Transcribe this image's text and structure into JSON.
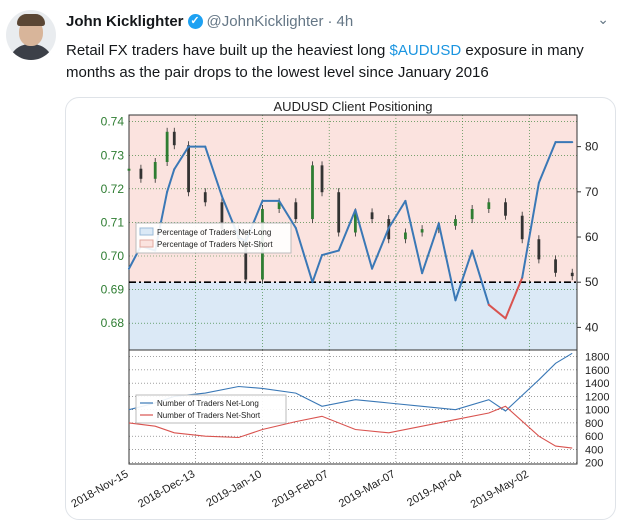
{
  "tweet": {
    "author_name": "John Kicklighter",
    "handle": "@JohnKicklighter",
    "separator": "·",
    "time": "4h",
    "verified_glyph": "✓",
    "menu_glyph": "⌄",
    "text_line1_pre": "Retail FX traders have built up the heaviest long ",
    "cashtag": "$AUDUSD",
    "text_line1_post": " exposure in many",
    "text_line2": "months as the pair drops to the lowest level since January 2016"
  },
  "colors": {
    "price_green": "#2e7d32",
    "long_blue": "#3a78b6",
    "short_red": "#d9534f",
    "long_fill": "#dbe9f6",
    "short_fill": "#fbe3df",
    "link": "#1b95e0"
  },
  "chart_data": {
    "type": "line",
    "title": "AUDUSD Client Positioning",
    "price_axis": {
      "ticks": [
        "0.74",
        "0.73",
        "0.72",
        "0.71",
        "0.70",
        "0.69",
        "0.68"
      ],
      "ylim": [
        0.672,
        0.742
      ]
    },
    "percent_axis": {
      "ticks": [
        "80",
        "70",
        "60",
        "50",
        "40"
      ],
      "ylim": [
        35,
        87
      ]
    },
    "count_axis": {
      "ticks": [
        "1800",
        "1600",
        "1400",
        "1200",
        "1000",
        "800",
        "600",
        "400",
        "200"
      ],
      "ylim": [
        180,
        1900
      ]
    },
    "x_ticks": [
      "2018-Nov-15",
      "2018-Dec-13",
      "2019-Jan-10",
      "2019-Feb-07",
      "2019-Mar-07",
      "2019-Apr-04",
      "2019-May-02"
    ],
    "top_legend": [
      "Percentage of Traders Net-Long",
      "Percentage of Traders Net-Short"
    ],
    "bottom_legend": [
      "Number of Traders Net-Long",
      "Number of Traders Net-Short"
    ],
    "series": [
      {
        "name": "AUDUSD",
        "x_dates": [
          "2018-11-15",
          "2018-11-20",
          "2018-11-26",
          "2018-12-01",
          "2018-12-04",
          "2018-12-10",
          "2018-12-17",
          "2018-12-24",
          "2018-12-31",
          "2019-01-03",
          "2019-01-10",
          "2019-01-17",
          "2019-01-24",
          "2019-01-31",
          "2019-02-04",
          "2019-02-11",
          "2019-02-18",
          "2019-02-25",
          "2019-03-04",
          "2019-03-11",
          "2019-03-18",
          "2019-03-25",
          "2019-04-01",
          "2019-04-08",
          "2019-04-15",
          "2019-04-22",
          "2019-04-29",
          "2019-05-06",
          "2019-05-13",
          "2019-05-20"
        ],
        "values": [
          0.726,
          0.723,
          0.728,
          0.737,
          0.733,
          0.719,
          0.716,
          0.708,
          0.705,
          0.693,
          0.714,
          0.716,
          0.711,
          0.727,
          0.719,
          0.707,
          0.713,
          0.711,
          0.705,
          0.707,
          0.708,
          0.709,
          0.711,
          0.714,
          0.716,
          0.712,
          0.705,
          0.699,
          0.695,
          0.694
        ]
      },
      {
        "name": "Percentage of Traders Net-Long",
        "x_dates": [
          "2018-11-15",
          "2018-11-20",
          "2018-11-26",
          "2018-12-01",
          "2018-12-04",
          "2018-12-10",
          "2018-12-17",
          "2018-12-24",
          "2018-12-31",
          "2019-01-03",
          "2019-01-10",
          "2019-01-17",
          "2019-01-24",
          "2019-01-31",
          "2019-02-04",
          "2019-02-11",
          "2019-02-18",
          "2019-02-25",
          "2019-03-04",
          "2019-03-11",
          "2019-03-18",
          "2019-03-25",
          "2019-04-01",
          "2019-04-08",
          "2019-04-15",
          "2019-04-22",
          "2019-04-29",
          "2019-05-06",
          "2019-05-13",
          "2019-05-20"
        ],
        "values": [
          53,
          58,
          57,
          70,
          75,
          80,
          80,
          69,
          60,
          59,
          68,
          68,
          62,
          50,
          56,
          57,
          66,
          53,
          62,
          68,
          52,
          63,
          46,
          57,
          45,
          42,
          51,
          72,
          81,
          81
        ]
      },
      {
        "name": "Number of Traders Net-Long",
        "x_dates": [
          "2018-11-15",
          "2018-11-26",
          "2018-12-04",
          "2018-12-17",
          "2018-12-31",
          "2019-01-10",
          "2019-01-24",
          "2019-02-04",
          "2019-02-18",
          "2019-03-04",
          "2019-03-18",
          "2019-04-01",
          "2019-04-15",
          "2019-04-22",
          "2019-05-06",
          "2019-05-13",
          "2019-05-20"
        ],
        "values": [
          1000,
          1100,
          1200,
          1250,
          1350,
          1320,
          1250,
          1050,
          1150,
          1100,
          1050,
          1000,
          1150,
          980,
          1450,
          1700,
          1850
        ]
      },
      {
        "name": "Number of Traders Net-Short",
        "x_dates": [
          "2018-11-15",
          "2018-11-26",
          "2018-12-04",
          "2018-12-17",
          "2018-12-31",
          "2019-01-10",
          "2019-01-24",
          "2019-02-04",
          "2019-02-18",
          "2019-03-04",
          "2019-03-18",
          "2019-04-01",
          "2019-04-15",
          "2019-04-22",
          "2019-05-06",
          "2019-05-13",
          "2019-05-20"
        ],
        "values": [
          800,
          750,
          650,
          600,
          580,
          700,
          820,
          900,
          700,
          650,
          750,
          850,
          950,
          1050,
          600,
          450,
          420
        ]
      }
    ],
    "reference_line_percent": 50,
    "grid": true
  }
}
